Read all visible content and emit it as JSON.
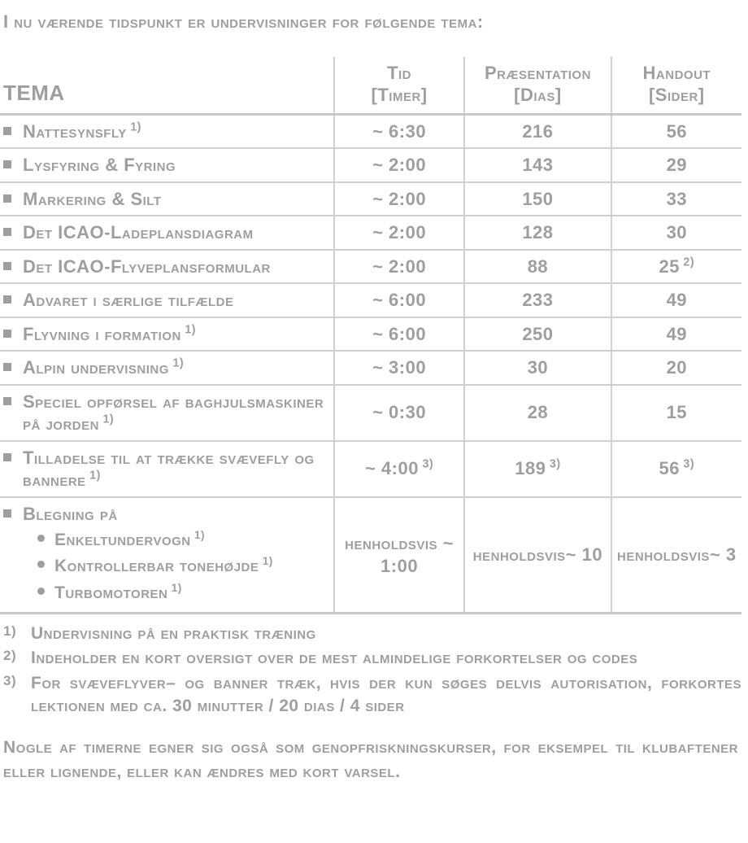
{
  "intro": "I nu værende tidspunkt er undervisninger for følgende tema:",
  "headers": {
    "tema": "TEMA",
    "tid_l1": "Tid",
    "tid_l2": "[Timer]",
    "pres_l1": "Præsentation",
    "pres_l2": "[Dias]",
    "hand_l1": "Handout",
    "hand_l2": "[Sider]"
  },
  "rows": [
    {
      "tema": "Nattesynsfly",
      "sup": "1)",
      "tid": "~ 6:30",
      "pres": "216",
      "hand": "56"
    },
    {
      "tema": "Lysfyring & Fyring",
      "sup": "",
      "tid": "~ 2:00",
      "pres": "143",
      "hand": "29"
    },
    {
      "tema": "Markering & Silt",
      "sup": "",
      "tid": "~ 2:00",
      "pres": "150",
      "hand": "33"
    },
    {
      "tema": "Det ICAO-Ladeplansdiagram",
      "sup": "",
      "tid": "~ 2:00",
      "pres": "128",
      "hand": "30"
    },
    {
      "tema": "Det ICAO-Flyveplansformular",
      "sup": "",
      "tid": "~ 2:00",
      "pres": "88",
      "hand": "25",
      "hand_sup": "2)"
    },
    {
      "tema": "Advaret i særlige tilfælde",
      "sup": "",
      "tid": "~ 6:00",
      "pres": "233",
      "hand": "49"
    },
    {
      "tema": "Flyvning i formation",
      "sup": "1)",
      "tid": "~ 6:00",
      "pres": "250",
      "hand": "49"
    },
    {
      "tema": "Alpin undervisning",
      "sup": "1)",
      "tid": "~ 3:00",
      "pres": "30",
      "hand": "20"
    },
    {
      "tema": "Speciel opførsel af baghjulsmaskiner på jorden",
      "sup": "1)",
      "tid": "~ 0:30",
      "pres": "28",
      "hand": "15"
    },
    {
      "tema": "Tilladelse til at trække svævefly og bannere",
      "sup": "1)",
      "tid": "~ 4:00",
      "tid_sup": "3)",
      "pres": "189",
      "pres_sup": "3)",
      "hand": "56",
      "hand_sup": "3)"
    }
  ],
  "complex_row": {
    "tema_head": "Blegning på",
    "sub1": "Enkeltundervogn",
    "sub1_sup": "1)",
    "sub2": "Kontrollerbar tonehøjde",
    "sub2_sup": "1)",
    "sub3": "Turbomotoren",
    "sub3_sup": "1)",
    "tid": "henholdsvis ~ 1:00",
    "pres": "henholdsvis~ 10",
    "hand": "henholdsvis~ 3"
  },
  "footnotes": {
    "f1_mark": "1)",
    "f1": "Undervisning på en praktisk træning",
    "f2_mark": "2)",
    "f2": "Indeholder en kort oversigt over de mest almindelige forkortelser og codes",
    "f3_mark": "3)",
    "f3": "For svæveflyver– og banner træk, hvis der kun søges delvis autorisation, forkortes lektionen med ca. 30 minutter / 20 dias / 4 sider"
  },
  "outro": "Nogle af timerne egner sig også som genopfriskningskurser, for eksempel til klubaftener eller lignende, eller kan ændres med kort varsel.",
  "colors": {
    "text": "#9e9e9e",
    "rule": "#d0d0d0",
    "bg": "#ffffff"
  }
}
